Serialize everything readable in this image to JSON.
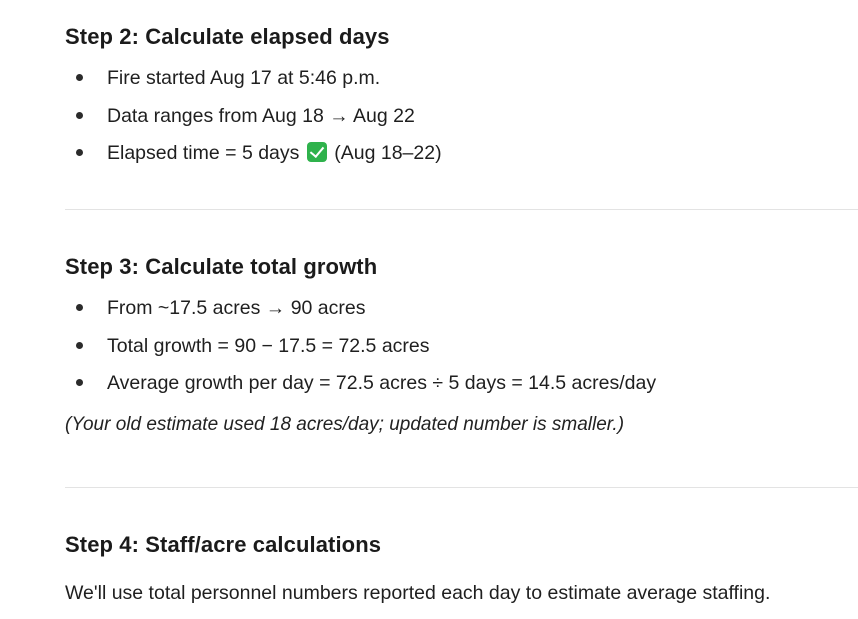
{
  "step2": {
    "heading": "Step 2: Calculate elapsed days",
    "items": [
      {
        "before": "Fire started ",
        "after": "Aug 17 at 5:46 p.m."
      },
      {
        "text": "Data ranges from Aug 18 → Aug 22"
      },
      {
        "before": "Elapsed time = 5 days ",
        "icon": "check-mark-icon",
        "after": " (Aug 18–22)"
      }
    ]
  },
  "step3": {
    "heading": "Step 3: Calculate total growth",
    "items": [
      {
        "text": "From ~17.5 acres → 90 acres"
      },
      {
        "text": "Total growth = 90 − 17.5 = 72.5 acres"
      },
      {
        "text": "Average growth per day = 72.5 acres ÷ 5 days = 14.5 acres/day"
      }
    ],
    "note": "(Your old estimate used 18 acres/day; updated number is smaller.)"
  },
  "step4": {
    "heading": "Step 4: Staff/acre calculations",
    "paragraph": "We'll use total personnel numbers reported each day to estimate average staffing."
  },
  "colors": {
    "check_icon": "#2fb24c",
    "divider": "#e3e3e3",
    "text": "#1f1f1f"
  }
}
